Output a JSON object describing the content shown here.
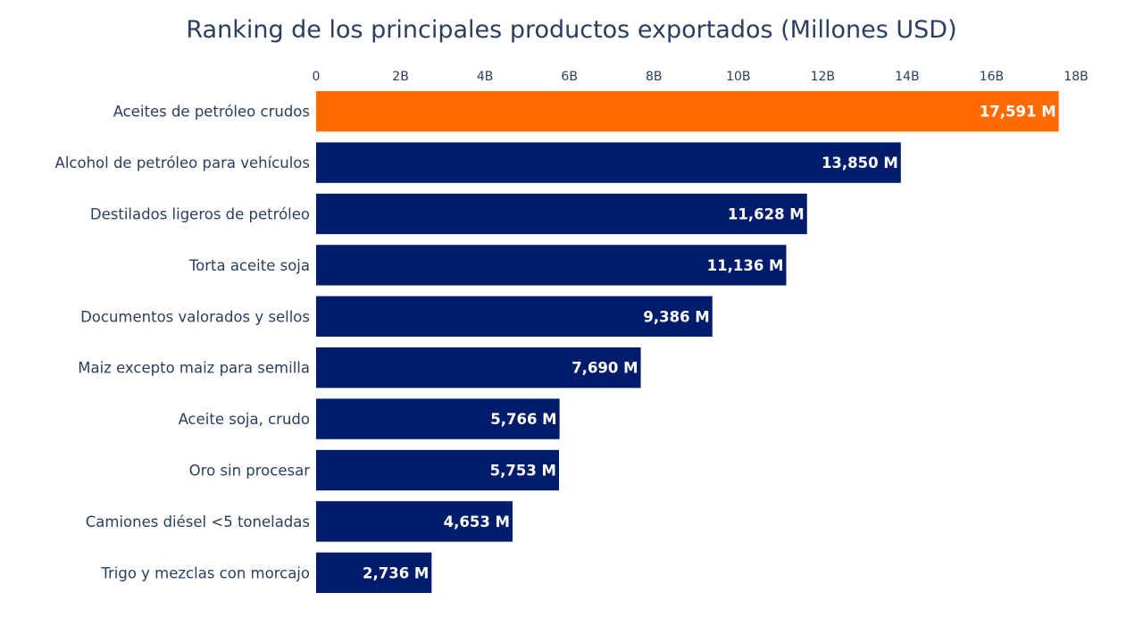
{
  "chart_data": {
    "type": "bar",
    "orientation": "horizontal",
    "title": "Ranking de los principales productos exportados (Millones USD)",
    "xlabel": "",
    "ylabel": "",
    "xlim": [
      0,
      18000
    ],
    "x_ticks": [
      {
        "value": 0,
        "label": "0"
      },
      {
        "value": 2000,
        "label": "2B"
      },
      {
        "value": 4000,
        "label": "4B"
      },
      {
        "value": 6000,
        "label": "6B"
      },
      {
        "value": 8000,
        "label": "8B"
      },
      {
        "value": 10000,
        "label": "10B"
      },
      {
        "value": 12000,
        "label": "12B"
      },
      {
        "value": 14000,
        "label": "14B"
      },
      {
        "value": 16000,
        "label": "16B"
      },
      {
        "value": 18000,
        "label": "18B"
      }
    ],
    "x_axis_position": "top",
    "grid": false,
    "categories": [
      "Aceites de petróleo crudos",
      "Alcohol de petróleo para vehículos",
      "Destilados ligeros de petróleo",
      "Torta aceite soja",
      "Documentos valorados y sellos",
      "Maiz excepto maiz para semilla",
      "Aceite soja, crudo",
      "Oro sin procesar",
      "Camiones diésel <5 toneladas",
      "Trigo y mezclas con morcajo"
    ],
    "values": [
      17591,
      13850,
      11628,
      11136,
      9386,
      7690,
      5766,
      5753,
      4653,
      2736
    ],
    "data_labels": [
      "17,591 M",
      "13,850 M",
      "11,628 M",
      "11,136 M",
      "9,386 M",
      "7,690 M",
      "5,766 M",
      "5,753 M",
      "4,653 M",
      "2,736 M"
    ],
    "colors": {
      "highlight": "#ff6b00",
      "default": "#001c6b",
      "text": "#2a3f5f",
      "bar_label": "#ffffff"
    },
    "highlight_index": 0
  }
}
